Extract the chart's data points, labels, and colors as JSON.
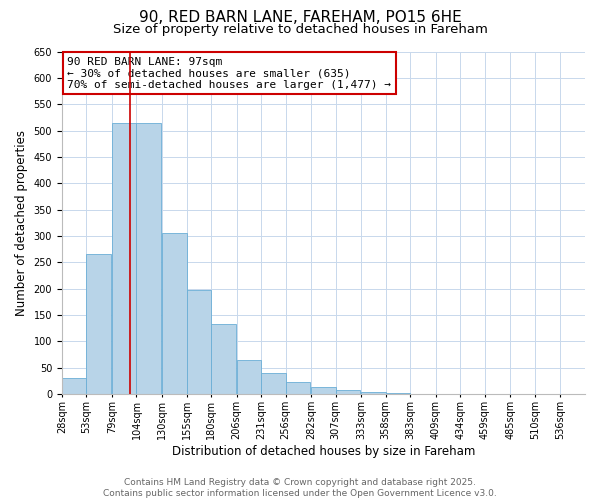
{
  "title": "90, RED BARN LANE, FAREHAM, PO15 6HE",
  "subtitle": "Size of property relative to detached houses in Fareham",
  "xlabel": "Distribution of detached houses by size in Fareham",
  "ylabel": "Number of detached properties",
  "bar_color": "#b8d4e8",
  "bar_edge_color": "#6aaed6",
  "background_color": "#ffffff",
  "grid_color": "#c8d8ec",
  "categories": [
    "28sqm",
    "53sqm",
    "79sqm",
    "104sqm",
    "130sqm",
    "155sqm",
    "180sqm",
    "206sqm",
    "231sqm",
    "256sqm",
    "282sqm",
    "307sqm",
    "333sqm",
    "358sqm",
    "383sqm",
    "409sqm",
    "434sqm",
    "459sqm",
    "485sqm",
    "510sqm",
    "536sqm"
  ],
  "bin_lefts": [
    28,
    53,
    79,
    104,
    130,
    155,
    180,
    206,
    231,
    256,
    282,
    307,
    333,
    358,
    383,
    409,
    434,
    459,
    485,
    510,
    536
  ],
  "bin_width": 25,
  "values": [
    31,
    265,
    515,
    515,
    305,
    198,
    133,
    65,
    40,
    22,
    14,
    8,
    3,
    1,
    0,
    0,
    0,
    0,
    0,
    0,
    0
  ],
  "ylim": [
    0,
    650
  ],
  "yticks": [
    0,
    50,
    100,
    150,
    200,
    250,
    300,
    350,
    400,
    450,
    500,
    550,
    600,
    650
  ],
  "property_size": 97,
  "red_line_color": "#cc0000",
  "annotation_line1": "90 RED BARN LANE: 97sqm",
  "annotation_line2": "← 30% of detached houses are smaller (635)",
  "annotation_line3": "70% of semi-detached houses are larger (1,477) →",
  "annotation_box_facecolor": "#ffffff",
  "annotation_box_edgecolor": "#cc0000",
  "footer_line1": "Contains HM Land Registry data © Crown copyright and database right 2025.",
  "footer_line2": "Contains public sector information licensed under the Open Government Licence v3.0.",
  "title_fontsize": 11,
  "subtitle_fontsize": 9.5,
  "tick_fontsize": 7,
  "label_fontsize": 8.5,
  "annotation_fontsize": 8,
  "footer_fontsize": 6.5
}
